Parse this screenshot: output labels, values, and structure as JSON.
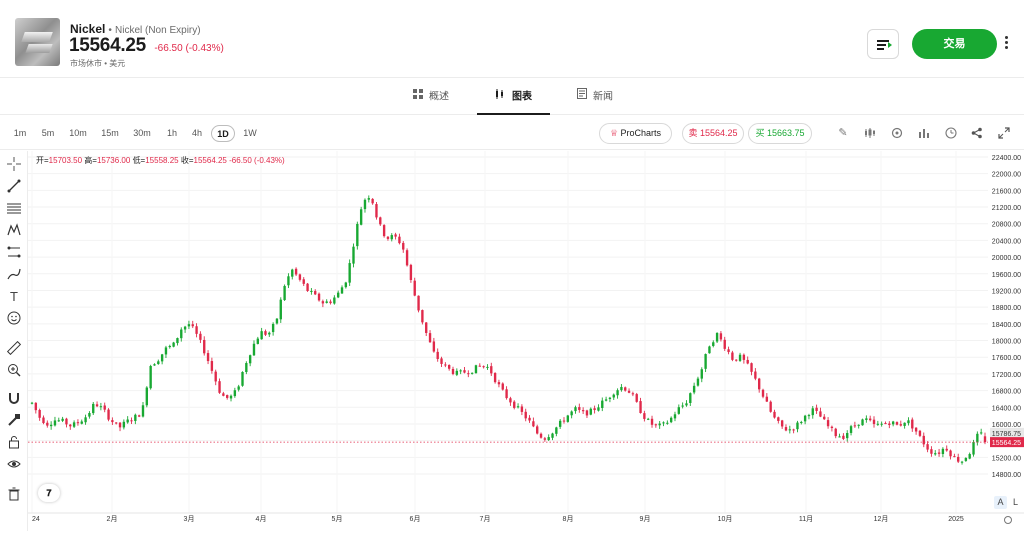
{
  "header": {
    "symbol": "Nickel",
    "separator": "•",
    "full_name": "Nickel (Non Expiry)",
    "price": "15564.25",
    "change": "-66.50 (-0.43%)",
    "market_status": "市场休市 • 美元",
    "trade_button": "交易",
    "watch_icon": "watchlist-icon",
    "more_icon": "more-vertical-icon"
  },
  "tabs": [
    {
      "label": "概述",
      "icon": "grid-icon"
    },
    {
      "label": "图表",
      "icon": "candles-icon",
      "active": true
    },
    {
      "label": "新闻",
      "icon": "news-icon"
    }
  ],
  "toolbar": {
    "timeframes": [
      "1m",
      "5m",
      "10m",
      "15m",
      "30m",
      "1h",
      "4h",
      "1D",
      "1W"
    ],
    "active_timeframe": "1D",
    "procharts": "ProCharts",
    "sell": "卖 15564.25",
    "buy": "买 15663.75",
    "icons": [
      "pencil-icon",
      "candle-type-icon",
      "settings-icon",
      "indicators-icon",
      "clock-icon",
      "share-icon",
      "fullscreen-icon"
    ]
  },
  "ohlc": {
    "open_label": "开=",
    "open": "15703.50",
    "high_label": "高=",
    "high": "15736.00",
    "low_label": "低=",
    "low": "15558.25",
    "close_label": "收=",
    "close": "15564.25",
    "change": "-66.50 (-0.43%)"
  },
  "drawing_tools": [
    "crosshair-icon",
    "trendline-icon",
    "fib-icon",
    "pattern-icon",
    "projection-icon",
    "brush-icon",
    "text-icon",
    "emoji-icon",
    "ruler-icon",
    "zoom-in-icon",
    "magnet-icon",
    "lock-drawing-icon",
    "lock-icon",
    "eye-icon",
    "trash-icon"
  ],
  "scale_buttons": {
    "auto": "A",
    "log": "L"
  },
  "colors": {
    "up": "#18a832",
    "down": "#e0294a",
    "grid": "#f2f2f2",
    "last_price_bg": "#e0294a",
    "prev_price_bg": "#e8e8e8"
  },
  "chart_data": {
    "type": "candlestick",
    "ylim": [
      14800,
      22400
    ],
    "ytick_labels": [
      "22400.00",
      "22000.00",
      "21600.00",
      "21200.00",
      "20800.00",
      "20400.00",
      "20000.00",
      "19600.00",
      "19200.00",
      "18800.00",
      "18400.00",
      "18000.00",
      "17600.00",
      "17200.00",
      "16800.00",
      "16400.00",
      "16000.00",
      "15600.00",
      "15200.00",
      "14800.00"
    ],
    "yticks": [
      22400,
      22000,
      21600,
      21200,
      20800,
      20400,
      20000,
      19600,
      19200,
      18800,
      18400,
      18000,
      17600,
      17200,
      16800,
      16400,
      16000,
      15600,
      15200,
      14800
    ],
    "xtick_labels": [
      "24",
      "2月",
      "3月",
      "4月",
      "5月",
      "6月",
      "7月",
      "8月",
      "9月",
      "10月",
      "11月",
      "12月",
      "2025"
    ],
    "last_price": 15564.25,
    "last_price_label": "15564.25",
    "prev_price": 15786.75,
    "prev_price_label": "15786.75",
    "path": [
      16500,
      16150,
      16000,
      16100,
      16050,
      15950,
      16050,
      16200,
      16500,
      16350,
      16100,
      15900,
      16050,
      16150,
      16300,
      17400,
      17550,
      17800,
      17900,
      18300,
      18400,
      18100,
      17700,
      17200,
      16700,
      16600,
      16800,
      17400,
      17850,
      18200,
      18150,
      18450,
      19300,
      19700,
      19450,
      19200,
      19050,
      18900,
      18950,
      19150,
      19500,
      20500,
      21350,
      21500,
      20800,
      20450,
      20500,
      20300,
      19500,
      18800,
      18200,
      17700,
      17450,
      17300,
      17200,
      17250,
      17300,
      17400,
      17350,
      17000,
      16700,
      16500,
      16300,
      16100,
      15800,
      15650,
      15800,
      16000,
      16200,
      16350,
      16250,
      16300,
      16450,
      16600,
      16800,
      16900,
      16750,
      16400,
      16100,
      15950,
      15950,
      16100,
      16350,
      16500,
      16900,
      17300,
      17900,
      18150,
      17850,
      17550,
      17600,
      17350,
      17000,
      16600,
      16200,
      15950,
      15850,
      15950,
      16150,
      16350,
      16200,
      15950,
      15750,
      15700,
      15900,
      16050,
      16100,
      15950,
      16000,
      16050,
      15950,
      16100,
      15900,
      15600,
      15350,
      15300,
      15450,
      15200,
      15100,
      15300,
      15700,
      15800
    ]
  }
}
